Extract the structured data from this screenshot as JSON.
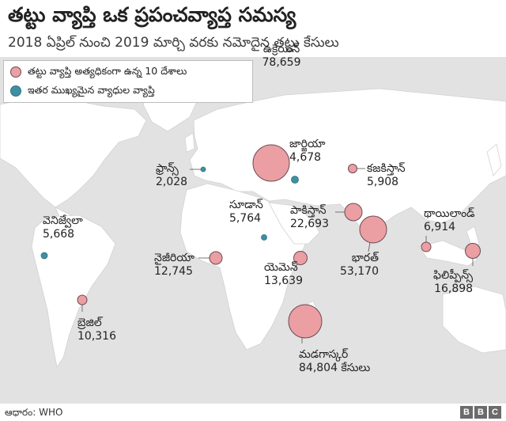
{
  "title": "తట్టు వ్యాప్తి ఒక ప్రపంచవ్యాప్త సమస్య",
  "subtitle": "2018 ఏప్రిల్ నుంచి 2019 మార్చి వరకు నమోదైన తట్టు కేసులు",
  "legend": {
    "top10": "తట్టు వ్యాప్తి అత్యధికంగా ఉన్న 10 దేశాలు",
    "other": "ఇతర ముఖ్యమైన వ్యాధుల వ్యాప్తి"
  },
  "colors": {
    "top10_fill": "#eb9fa3",
    "other_fill": "#3f8fa3",
    "land": "#ffffff",
    "sea": "#e2e2e2"
  },
  "countries": [
    {
      "id": "ukraine",
      "name": "ఉక్రెయిన్",
      "value": "78,659",
      "category": "top10"
    },
    {
      "id": "georgia",
      "name": "జార్జియా",
      "value": "4,678",
      "category": "other"
    },
    {
      "id": "france",
      "name": "ఫ్రాన్స్",
      "value": "2,028",
      "category": "other"
    },
    {
      "id": "kazakhstan",
      "name": "కజకిస్తాన్",
      "value": "5,908",
      "category": "top10"
    },
    {
      "id": "venezuela",
      "name": "వెనిజ్వేలా",
      "value": "5,668",
      "category": "other"
    },
    {
      "id": "sudan",
      "name": "సూడాన్",
      "value": "5,764",
      "category": "other"
    },
    {
      "id": "pakistan",
      "name": "పాకిస్తాన్",
      "value": "22,693",
      "category": "top10"
    },
    {
      "id": "thailand",
      "name": "థాయిలాండ్",
      "value": "6,914",
      "category": "top10"
    },
    {
      "id": "nigeria",
      "name": "నైజీరియా",
      "value": "12,745",
      "category": "top10"
    },
    {
      "id": "yemen",
      "name": "యెమెన్",
      "value": "13,639",
      "category": "top10"
    },
    {
      "id": "india",
      "name": "భారత్",
      "value": "53,170",
      "category": "top10"
    },
    {
      "id": "philippines",
      "name": "ఫిలిప్పీన్స్",
      "value": "16,898",
      "category": "top10"
    },
    {
      "id": "brazil",
      "name": "బ్రెజిల్",
      "value": "10,316",
      "category": "top10"
    },
    {
      "id": "madagascar",
      "name": "మడగాస్కర్",
      "value": "84,804 కేసులు",
      "category": "top10"
    }
  ],
  "source": "ఆధారం: WHO",
  "logo": [
    "B",
    "B",
    "C"
  ]
}
